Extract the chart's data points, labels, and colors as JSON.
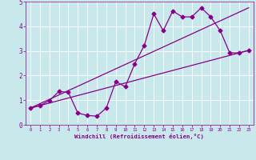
{
  "xlabel": "Windchill (Refroidissement éolien,°C)",
  "background_color": "#c8e8ec",
  "line_color": "#880088",
  "xlim": [
    -0.5,
    23.5
  ],
  "ylim": [
    0,
    5
  ],
  "xticks": [
    0,
    1,
    2,
    3,
    4,
    5,
    6,
    7,
    8,
    9,
    10,
    11,
    12,
    13,
    14,
    15,
    16,
    17,
    18,
    19,
    20,
    21,
    22,
    23
  ],
  "yticks": [
    0,
    1,
    2,
    3,
    4,
    5
  ],
  "line1_x": [
    0,
    1,
    2,
    3,
    4,
    5,
    6,
    7,
    8,
    9,
    10,
    11,
    12,
    13,
    14,
    15,
    16,
    17,
    18,
    19,
    20,
    21,
    22,
    23
  ],
  "line1_y": [
    0.68,
    0.78,
    0.98,
    1.35,
    1.32,
    0.48,
    0.38,
    0.35,
    0.68,
    1.75,
    1.55,
    2.48,
    3.22,
    4.5,
    3.82,
    4.62,
    4.38,
    4.38,
    4.75,
    4.38,
    3.82,
    2.92,
    2.92,
    3.02
  ],
  "line2_x": [
    0,
    23
  ],
  "line2_y": [
    0.68,
    3.02
  ],
  "line3_x": [
    0,
    23
  ],
  "line3_y": [
    0.68,
    4.75
  ],
  "marker": "D",
  "markersize": 2.5,
  "linewidth": 0.9
}
